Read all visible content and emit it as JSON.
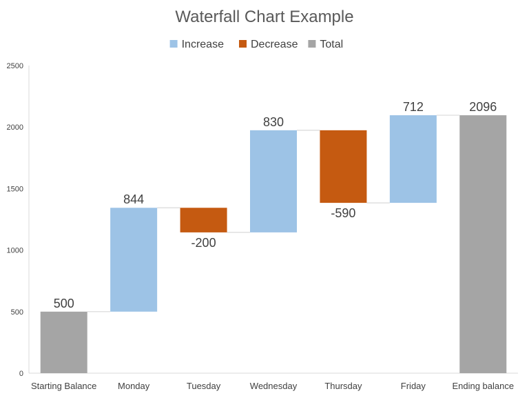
{
  "chart_data": {
    "type": "waterfall",
    "title": "Waterfall Chart Example",
    "categories": [
      "Starting Balance",
      "Monday",
      "Tuesday",
      "Wednesday",
      "Thursday",
      "Friday",
      "Ending balance"
    ],
    "values": [
      500,
      844,
      -200,
      830,
      -590,
      712,
      2096
    ],
    "kinds": [
      "total",
      "increase",
      "decrease",
      "increase",
      "decrease",
      "increase",
      "total"
    ],
    "data_labels": [
      "500",
      "844",
      "-200",
      "830",
      "-590",
      "712",
      "2096"
    ],
    "legend": [
      {
        "key": "increase",
        "label": "Increase",
        "color": "#9DC3E6"
      },
      {
        "key": "decrease",
        "label": "Decrease",
        "color": "#C55A11"
      },
      {
        "key": "total",
        "label": "Total",
        "color": "#A5A5A5"
      }
    ],
    "legend_position": "top",
    "ylim": [
      0,
      2500
    ],
    "yticks": [
      0,
      500,
      1000,
      1500,
      2000,
      2500
    ],
    "ytick_labels": [
      "0",
      "500",
      "1000",
      "1500",
      "2000",
      "2500"
    ],
    "grid": false,
    "connectors": true,
    "xlabel": "",
    "ylabel": ""
  }
}
